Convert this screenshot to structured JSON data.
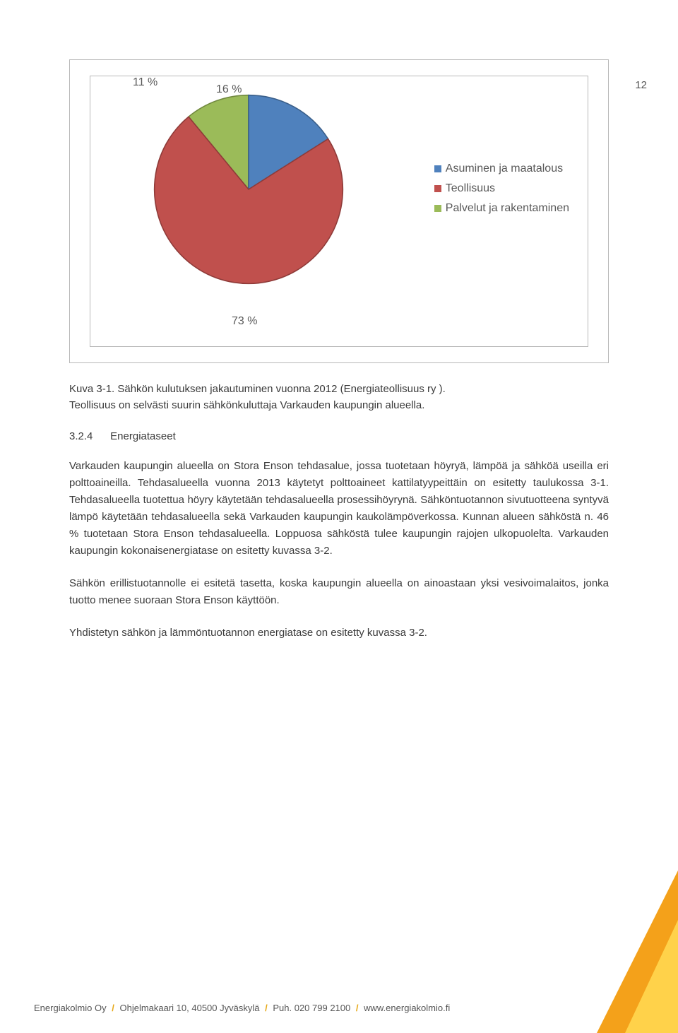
{
  "page_number": "12",
  "chart": {
    "type": "pie",
    "slices": [
      {
        "label": "Asuminen ja maatalous",
        "value": 16,
        "display": "16 %",
        "color": "#4f81bd",
        "border": "#3a5f8a"
      },
      {
        "label": "Teollisuus",
        "value": 73,
        "display": "73 %",
        "color": "#c0504d",
        "border": "#8f3b39"
      },
      {
        "label": "Palvelut ja rakentaminen",
        "value": 11,
        "display": "11 %",
        "color": "#9bbb59",
        "border": "#71893f"
      }
    ],
    "legend": [
      {
        "swatch": "#4f81bd",
        "label": "Asuminen ja maatalous"
      },
      {
        "swatch": "#c0504d",
        "label": "Teollisuus"
      },
      {
        "swatch": "#9bbb59",
        "label": "Palvelut ja rakentaminen"
      }
    ],
    "slice_label_11": "11 %",
    "slice_label_16": "16 %",
    "slice_label_73": "73 %"
  },
  "caption_line1": "Kuva 3-1. Sähkön kulutuksen jakautuminen vuonna 2012 (Energiateollisuus ry ).",
  "caption_line2": "Teollisuus on selvästi suurin sähkönkuluttaja Varkauden kaupungin alueella.",
  "section": {
    "number": "3.2.4",
    "title": "Energiataseet"
  },
  "paragraph1": "Varkauden kaupungin alueella on Stora Enson tehdasalue, jossa tuotetaan höyryä, lämpöä ja sähköä useilla eri polttoaineilla. Tehdasalueella vuonna 2013 käytetyt polttoaineet kattilatyypeittäin on esitetty taulukossa 3-1. Tehdasalueella tuotettua höyry käytetään tehdasalueella prosessihöyrynä. Sähköntuotannon sivutuotteena syntyvä lämpö käytetään tehdasalueella sekä Varkauden kaupungin kaukolämpöverkossa. Kunnan alueen sähköstä n. 46 % tuotetaan Stora Enson tehdasalueella. Loppuosa sähköstä tulee kaupungin rajojen ulkopuolelta. Varkauden kaupungin kokonaisenergiatase on esitetty kuvassa 3-2.",
  "paragraph2": "Sähkön erillistuotannolle ei esitetä tasetta, koska kaupungin alueella on ainoastaan yksi vesivoimalaitos, jonka tuotto menee suoraan Stora Enson käyttöön.",
  "paragraph3": "Yhdistetyn sähkön ja lämmöntuotannon energiatase on esitetty kuvassa 3-2.",
  "footer": {
    "company": "Energiakolmio Oy",
    "address": "Ohjelmakaari 10, 40500 Jyväskylä",
    "phone": "Puh. 020 799 2100",
    "url": "www.energiakolmio.fi"
  },
  "accent": {
    "triangle_outer": "#f4a11a",
    "triangle_inner": "#ffd24a"
  }
}
